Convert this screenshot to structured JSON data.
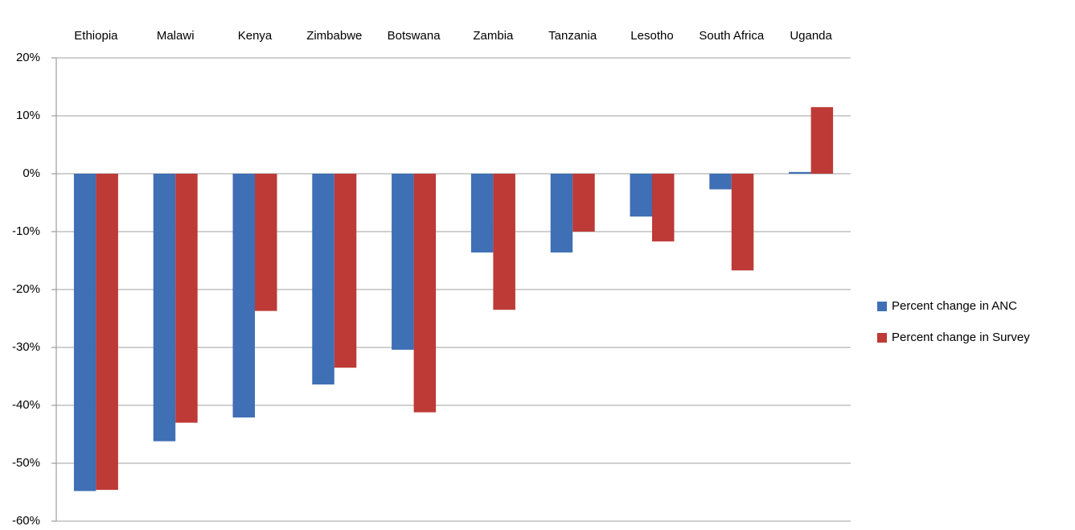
{
  "chart_data": {
    "type": "bar",
    "categories": [
      "Ethiopia",
      "Malawi",
      "Kenya",
      "Zimbabwe",
      "Botswana",
      "Zambia",
      "Tanzania",
      "Lesotho",
      "South Africa",
      "Uganda"
    ],
    "series": [
      {
        "name": "Percent change in ANC",
        "color": "#3f6fb5",
        "values": [
          -54.8,
          -46.2,
          -42.1,
          -36.4,
          -30.4,
          -13.6,
          -13.6,
          -7.4,
          -2.7,
          0.3
        ]
      },
      {
        "name": "Percent change in Survey",
        "color": "#bd3a37",
        "values": [
          -54.6,
          -43,
          -23.7,
          -33.5,
          -41.2,
          -23.5,
          -10,
          -11.7,
          -16.7,
          11.5
        ]
      }
    ],
    "ylim": [
      -60,
      20
    ],
    "yticks": [
      {
        "value": -60,
        "label": "-60%"
      },
      {
        "value": -50,
        "label": "-50%"
      },
      {
        "value": -40,
        "label": "-40%"
      },
      {
        "value": -30,
        "label": "-30%"
      },
      {
        "value": -20,
        "label": "-20%"
      },
      {
        "value": -10,
        "label": "-10%"
      },
      {
        "value": 0,
        "label": "0%"
      },
      {
        "value": 10,
        "label": "10%"
      },
      {
        "value": 20,
        "label": "20%"
      }
    ],
    "grid": true,
    "legend": "right"
  }
}
